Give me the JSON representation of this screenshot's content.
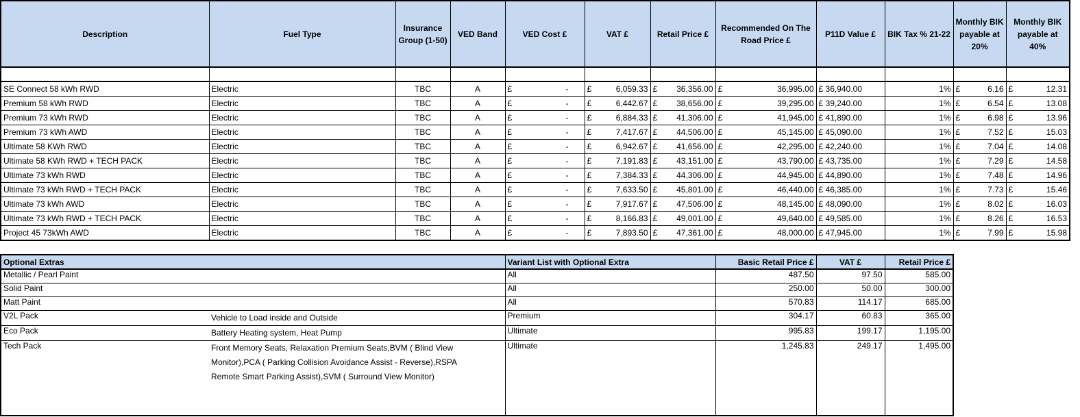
{
  "main_table": {
    "headers": [
      "Description",
      "Fuel Type",
      "Insurance Group (1-50)",
      "VED Band",
      "VED Cost £",
      "VAT £",
      "Retail Price £",
      "Recommended On The Road Price £",
      "P11D Value £",
      "BIK Tax % 21-22",
      "Monthly BIK payable at 20%",
      "Monthly BIK payable at 40%"
    ],
    "currency_symbol": "£",
    "rows": [
      {
        "description": "SE Connect 58 kWh RWD",
        "fuel": "Electric",
        "insurance": "TBC",
        "ved_band": "A",
        "ved_cost": "-",
        "vat": "6,059.33",
        "retail": "36,356.00",
        "otr": "36,995.00",
        "p11d": "36,940.00",
        "bik_pct": "1%",
        "bik20": "6.16",
        "bik40": "12.31"
      },
      {
        "description": "Premium 58 kWh RWD",
        "fuel": "Electric",
        "insurance": "TBC",
        "ved_band": "A",
        "ved_cost": "-",
        "vat": "6,442.67",
        "retail": "38,656.00",
        "otr": "39,295.00",
        "p11d": "39,240.00",
        "bik_pct": "1%",
        "bik20": "6.54",
        "bik40": "13.08"
      },
      {
        "description": "Premium 73 kWh RWD",
        "fuel": "Electric",
        "insurance": "TBC",
        "ved_band": "A",
        "ved_cost": "-",
        "vat": "6,884.33",
        "retail": "41,306.00",
        "otr": "41,945.00",
        "p11d": "41,890.00",
        "bik_pct": "1%",
        "bik20": "6.98",
        "bik40": "13.96"
      },
      {
        "description": "Premium 73 kWh AWD",
        "fuel": "Electric",
        "insurance": "TBC",
        "ved_band": "A",
        "ved_cost": "-",
        "vat": "7,417.67",
        "retail": "44,506.00",
        "otr": "45,145.00",
        "p11d": "45,090.00",
        "bik_pct": "1%",
        "bik20": "7.52",
        "bik40": "15.03"
      },
      {
        "description": "Ultimate 58 KWh RWD",
        "fuel": "Electric",
        "insurance": "TBC",
        "ved_band": "A",
        "ved_cost": "-",
        "vat": "6,942.67",
        "retail": "41,656.00",
        "otr": "42,295.00",
        "p11d": "42,240.00",
        "bik_pct": "1%",
        "bik20": "7.04",
        "bik40": "14.08"
      },
      {
        "description": "Ultimate 58 KWh RWD + TECH PACK",
        "fuel": "Electric",
        "insurance": "TBC",
        "ved_band": "A",
        "ved_cost": "-",
        "vat": "7,191.83",
        "retail": "43,151.00",
        "otr": "43,790.00",
        "p11d": "43,735.00",
        "bik_pct": "1%",
        "bik20": "7.29",
        "bik40": "14.58"
      },
      {
        "description": "Ultimate 73 kWh RWD",
        "fuel": "Electric",
        "insurance": "TBC",
        "ved_band": "A",
        "ved_cost": "-",
        "vat": "7,384.33",
        "retail": "44,306.00",
        "otr": "44,945.00",
        "p11d": "44,890.00",
        "bik_pct": "1%",
        "bik20": "7.48",
        "bik40": "14.96"
      },
      {
        "description": "Ultimate 73 kWh RWD + TECH PACK",
        "fuel": "Electric",
        "insurance": "TBC",
        "ved_band": "A",
        "ved_cost": "-",
        "vat": "7,633.50",
        "retail": "45,801.00",
        "otr": "46,440.00",
        "p11d": "46,385.00",
        "bik_pct": "1%",
        "bik20": "7.73",
        "bik40": "15.46"
      },
      {
        "description": "Ultimate 73 kWh AWD",
        "fuel": "Electric",
        "insurance": "TBC",
        "ved_band": "A",
        "ved_cost": "-",
        "vat": "7,917.67",
        "retail": "47,506.00",
        "otr": "48,145.00",
        "p11d": "48,090.00",
        "bik_pct": "1%",
        "bik20": "8.02",
        "bik40": "16.03"
      },
      {
        "description": "Ultimate 73 kWh RWD + TECH PACK",
        "fuel": "Electric",
        "insurance": "TBC",
        "ved_band": "A",
        "ved_cost": "-",
        "vat": "8,166.83",
        "retail": "49,001.00",
        "otr": "49,640.00",
        "p11d": "49,585.00",
        "bik_pct": "1%",
        "bik20": "8.26",
        "bik40": "16.53"
      },
      {
        "description": "Project 45 73kWh AWD",
        "fuel": "Electric",
        "insurance": "TBC",
        "ved_band": "A",
        "ved_cost": "-",
        "vat": "7,893.50",
        "retail": "47,361.00",
        "otr": "48,000.00",
        "p11d": "47,945.00",
        "bik_pct": "1%",
        "bik20": "7.99",
        "bik40": "15.98"
      }
    ]
  },
  "extras_table": {
    "headers": [
      "Optional Extras",
      "Variant List with Optional Extra",
      "Basic Retail Price £",
      "VAT £",
      "Retail Price £"
    ],
    "rows": [
      {
        "name": "Metallic / Pearl Paint",
        "details": "",
        "variant": "All",
        "basic": "487.50",
        "vat": "97.50",
        "retail": "585.00"
      },
      {
        "name": "Solid Paint",
        "details": "",
        "variant": "All",
        "basic": "250.00",
        "vat": "50.00",
        "retail": "300.00"
      },
      {
        "name": "Matt Paint",
        "details": "",
        "variant": "All",
        "basic": "570.83",
        "vat": "114.17",
        "retail": "685.00"
      },
      {
        "name": "V2L Pack",
        "details": "Vehicle to Load inside and Outside",
        "variant": "Premium",
        "basic": "304.17",
        "vat": "60.83",
        "retail": "365.00"
      },
      {
        "name": "Eco Pack",
        "details": "Battery Heating system, Heat Pump",
        "variant": "Ultimate",
        "basic": "995.83",
        "vat": "199.17",
        "retail": "1,195.00"
      },
      {
        "name": "Tech Pack",
        "details": "Front Memory Seats, Relaxation Premium Seats,BVM ( Blind View Monitor),PCA ( Parking Collision Avoidance Assist - Reverse),RSPA Remote Smart Parking Assist),SVM ( Surround View Monitor)",
        "variant": "Ultimate",
        "basic": "1,245.83",
        "vat": "249.17",
        "retail": "1,495.00"
      }
    ]
  },
  "colors": {
    "header_fill": "#c6d9f0",
    "border": "#000000"
  }
}
